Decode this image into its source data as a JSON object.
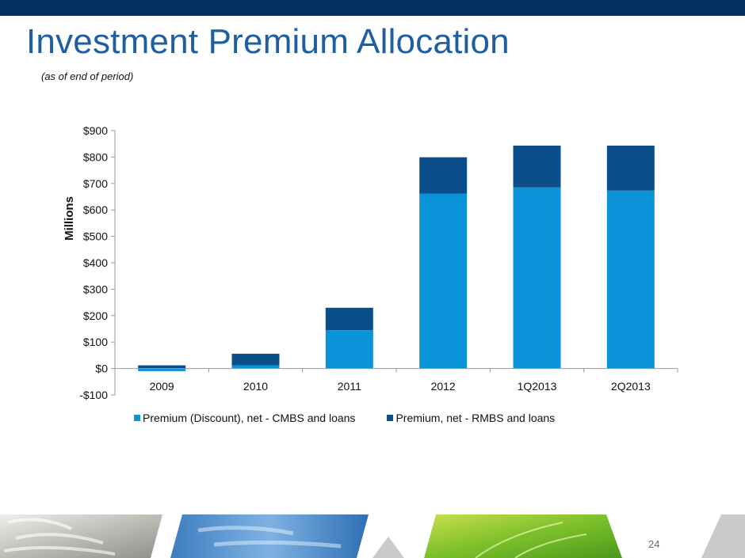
{
  "slide": {
    "title": "Investment Premium Allocation",
    "subtitle": "(as of end of period)",
    "page_number": "24"
  },
  "colors": {
    "header_band": "#06305f",
    "title": "#1f5fa0",
    "series_cmbs": "#0a93d8",
    "series_rmbs": "#0b4f8a"
  },
  "chart_data": {
    "type": "bar",
    "stacked": true,
    "title": "",
    "xlabel": "",
    "ylabel": "Millions",
    "categories": [
      "2009",
      "2010",
      "2011",
      "2012",
      "1Q2013",
      "2Q2013"
    ],
    "series": [
      {
        "name": "Premium (Discount), net - CMBS and loans",
        "values": [
          -10,
          12,
          145,
          662,
          685,
          673
        ]
      },
      {
        "name": "Premium, net - RMBS and loans",
        "values": [
          12,
          44,
          85,
          137,
          158,
          170
        ]
      }
    ],
    "ylim": [
      -100,
      900
    ],
    "yticks": [
      -100,
      0,
      100,
      200,
      300,
      400,
      500,
      600,
      700,
      800,
      900
    ],
    "ytick_labels": [
      "-$100",
      "$0",
      "$100",
      "$200",
      "$300",
      "$400",
      "$500",
      "$600",
      "$700",
      "$800",
      "$900"
    ],
    "grid": false,
    "legend_position": "bottom"
  }
}
